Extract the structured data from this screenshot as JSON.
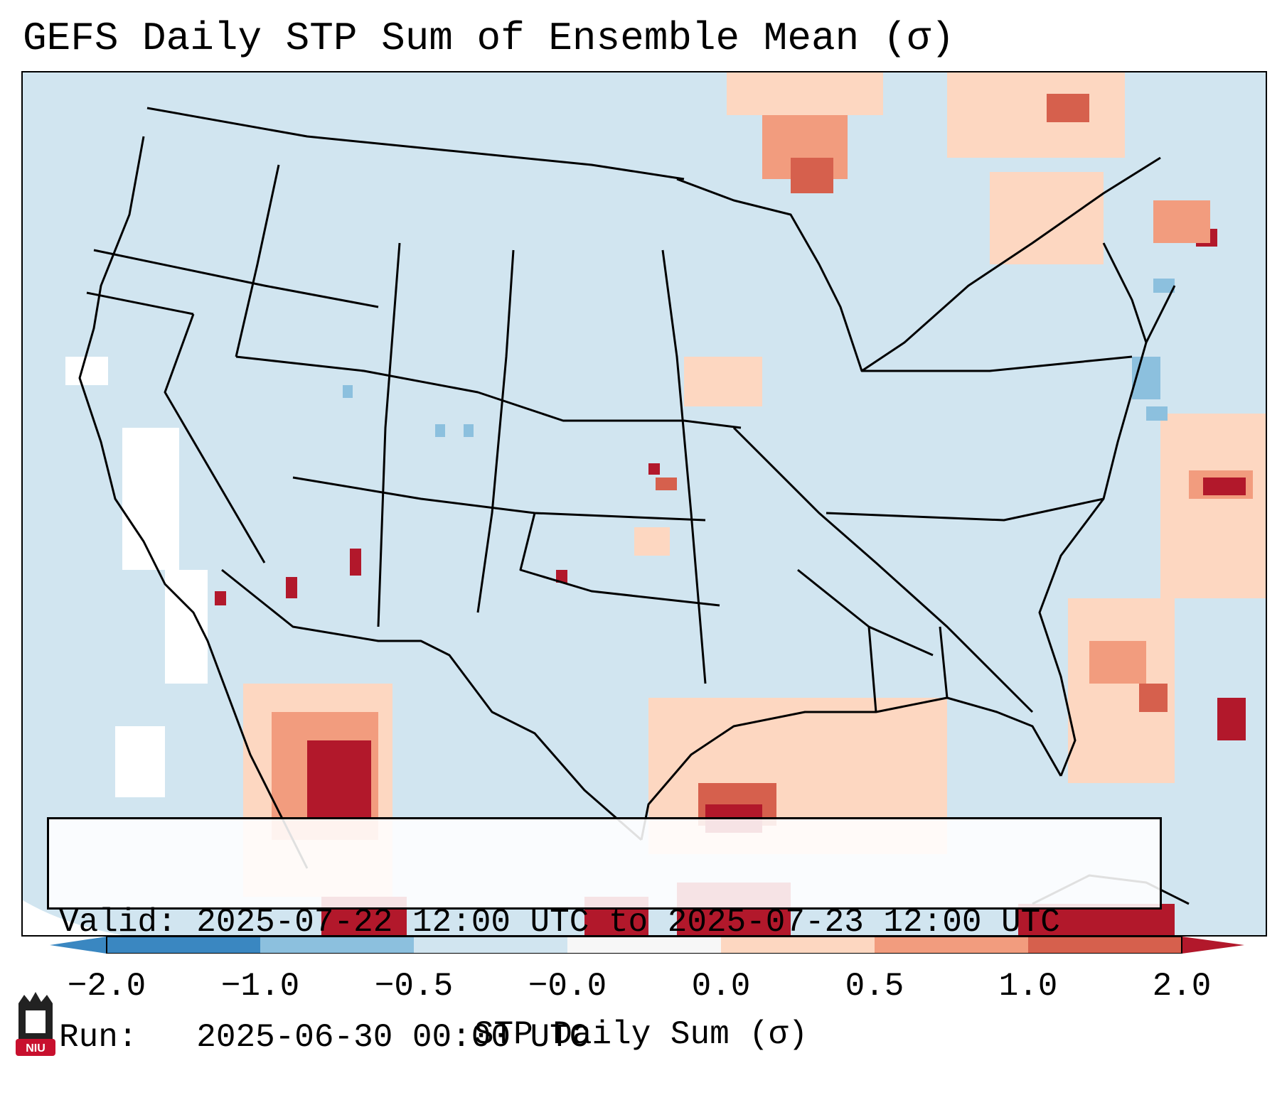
{
  "title": "GEFS Daily STP Sum of Ensemble Mean (σ)",
  "info": {
    "valid_label": "Valid:",
    "valid_value": "2025-07-22 12:00 UTC to 2025-07-23 12:00 UTC",
    "run_label": "Run:",
    "run_value": "2025-06-30 00:00 UTC"
  },
  "colorbar": {
    "label": "STP Daily Sum (σ)",
    "ticks": [
      "−2.0",
      "−1.0",
      "−0.5",
      "−0.0",
      "0.0",
      "0.5",
      "1.0",
      "2.0"
    ],
    "colors": [
      "#3a87c1",
      "#8cc0de",
      "#d1e5f0",
      "#f7f7f7",
      "#fdd7c1",
      "#f29c7e",
      "#d6604d",
      "#b2182b"
    ]
  },
  "map": {
    "background_color": "#d1e5f0",
    "outside_color": "#ffffff"
  },
  "logo": {
    "text": "NIU",
    "color": "#c8102e"
  }
}
